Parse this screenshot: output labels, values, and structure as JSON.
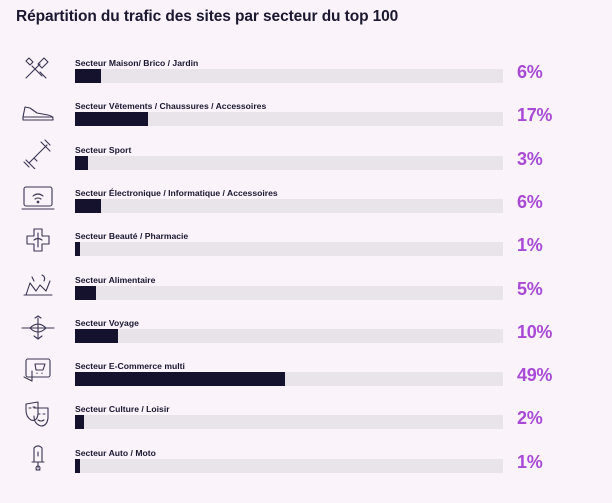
{
  "chart_data": {
    "type": "bar",
    "orientation": "horizontal",
    "title": "Répartition du trafic des sites par secteur du top 100",
    "unit": "%",
    "xlim": [
      0,
      100
    ],
    "accent_color": "#a84ad6",
    "bar_color": "#15122e",
    "track_color": "#e9e3ea",
    "categories": [
      "Secteur Maison/ Brico / Jardin",
      "Secteur Vêtements /  Chaussures / Accessoires",
      "Secteur Sport",
      "Secteur Électronique / Informatique / Accessoires",
      "Secteur Beauté / Pharmacie",
      "Secteur Alimentaire",
      "Secteur Voyage",
      "Secteur E-Commerce multi",
      "Secteur Culture / Loisir",
      "Secteur Auto / Moto"
    ],
    "values": [
      6,
      17,
      3,
      6,
      1,
      5,
      10,
      49,
      2,
      1
    ],
    "value_labels": [
      "6%",
      "17%",
      "3%",
      "6%",
      "1%",
      "5%",
      "10%",
      "49%",
      "2%",
      "1%"
    ],
    "icons": [
      "tools-icon",
      "shoe-icon",
      "dumbbell-icon",
      "laptop-wifi-icon",
      "medical-cross-icon",
      "food-icon",
      "airplane-icon",
      "shopping-screen-icon",
      "theater-masks-icon",
      "scooter-icon"
    ]
  }
}
